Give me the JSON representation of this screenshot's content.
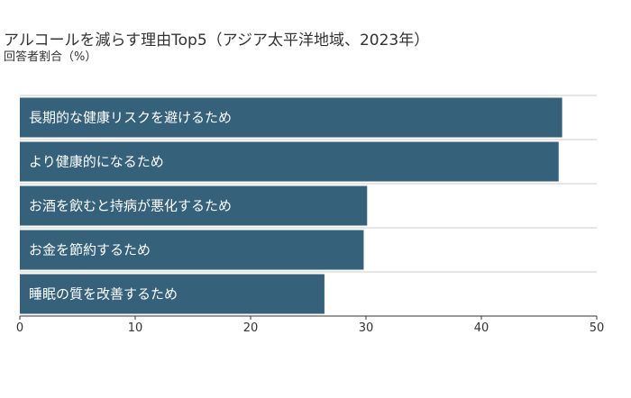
{
  "chart_data": {
    "type": "bar",
    "orientation": "horizontal",
    "title": "アルコールを減らす理由Top5（アジア太平洋地域、2023年）",
    "subtitle": "回答者割合（%）",
    "categories": [
      "長期的な健康リスクを避けるため",
      "より健康的になるため",
      "お酒を飲むと持病が悪化するため",
      "お金を節約するため",
      "睡眠の質を改善するため"
    ],
    "values": [
      47,
      46.7,
      30.1,
      29.8,
      26.4
    ],
    "xlim": [
      0,
      50
    ],
    "xticks": [
      "0",
      "10",
      "20",
      "30",
      "40",
      "50"
    ],
    "bar_color": "#35627a",
    "grid": true
  }
}
